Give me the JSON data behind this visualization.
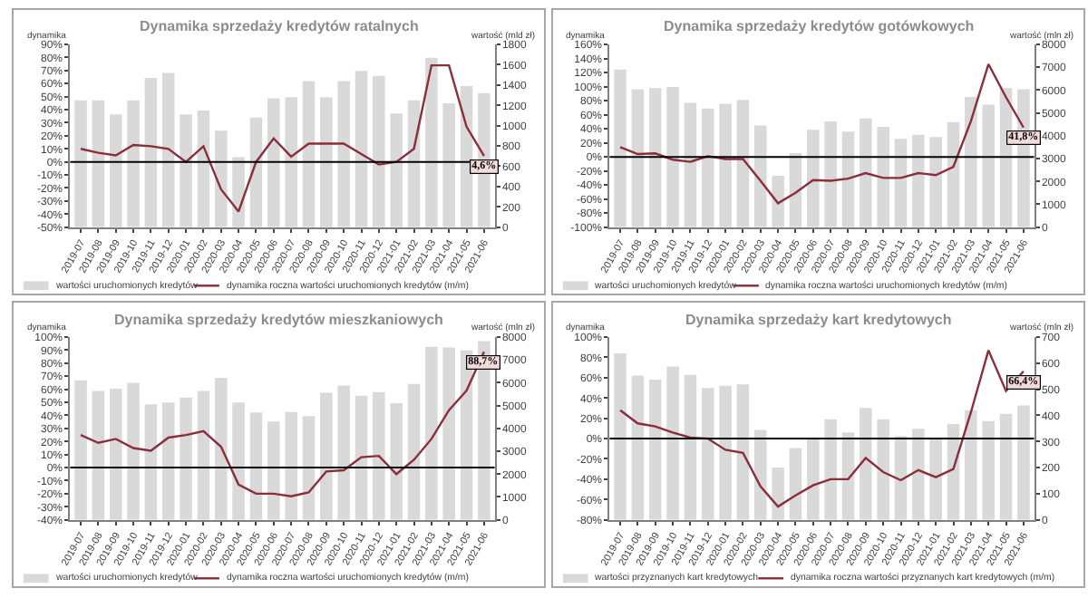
{
  "chart_data": [
    {
      "type": "bar",
      "title": "Dynamika sprzedaży kredytów ratalnych",
      "ylabel": "dynamika",
      "y2label": "wartość (mld zł)",
      "categories": [
        "2019-07",
        "2019-08",
        "2019-09",
        "2019-10",
        "2019-11",
        "2019-12",
        "2020-01",
        "2020-02",
        "2020-03",
        "2020-04",
        "2020-05",
        "2020-06",
        "2020-07",
        "2020-08",
        "2020-09",
        "2020-10",
        "2020-11",
        "2020-12",
        "2021-01",
        "2021-02",
        "2021-03",
        "2021-04",
        "2021-05",
        "2021-06"
      ],
      "series": [
        {
          "name": "wartości uruchomionych kredytów",
          "axis": "y2",
          "color": "#d9d9d9",
          "values": [
            1250,
            1250,
            1110,
            1250,
            1470,
            1520,
            1110,
            1150,
            950,
            690,
            1080,
            1270,
            1280,
            1440,
            1280,
            1440,
            1540,
            1490,
            1120,
            1250,
            1670,
            1220,
            1390,
            1320
          ]
        },
        {
          "name": "dynamika roczna wartości uruchomionych kredytów (m/m)",
          "type": "line",
          "color": "#8b2d3a",
          "values": [
            10,
            7,
            5,
            13,
            12,
            10,
            0,
            12,
            -21,
            -38,
            0,
            18,
            4,
            14,
            14,
            14,
            6,
            -2,
            0,
            10,
            74,
            74,
            27,
            4.6
          ],
          "value_labels": [
            null,
            null,
            null,
            null,
            null,
            null,
            null,
            null,
            null,
            null,
            null,
            null,
            null,
            null,
            null,
            null,
            null,
            null,
            null,
            null,
            null,
            null,
            null,
            "4,6%"
          ]
        }
      ],
      "ylim": [
        -50,
        90
      ],
      "yticks": [
        {
          "value": -50,
          "label": "-50%"
        },
        {
          "value": -40,
          "label": "-40%"
        },
        {
          "value": -30,
          "label": "-30%"
        },
        {
          "value": -20,
          "label": "-20%"
        },
        {
          "value": -10,
          "label": "-10%"
        },
        {
          "value": 0,
          "label": "0%"
        },
        {
          "value": 10,
          "label": "10%"
        },
        {
          "value": 20,
          "label": "20%"
        },
        {
          "value": 30,
          "label": "30%"
        },
        {
          "value": 40,
          "label": "40%"
        },
        {
          "value": 50,
          "label": "50%"
        },
        {
          "value": 60,
          "label": "60%"
        },
        {
          "value": 70,
          "label": "70%"
        },
        {
          "value": 80,
          "label": "80%"
        },
        {
          "value": 90,
          "label": "90%"
        }
      ],
      "y2lim": [
        0,
        1800
      ],
      "y2ticks": [
        0,
        200,
        400,
        600,
        800,
        1000,
        1200,
        1400,
        1600,
        1800
      ],
      "ref_lines": [
        {
          "axis": "y",
          "value": 0,
          "color": "#000000"
        }
      ],
      "grid": false,
      "legend": "bottom",
      "marker": "none",
      "line_style": "solid"
    },
    {
      "type": "bar",
      "title": "Dynamika sprzedaży kredytów gotówkowych",
      "ylabel": "dynamika",
      "y2label": "wartość (mln zł)",
      "categories": [
        "2019-07",
        "2019-08",
        "2019-09",
        "2019-10",
        "2019-11",
        "2019-12",
        "2020-01",
        "2020-02",
        "2020-03",
        "2020-04",
        "2020-05",
        "2020-06",
        "2020-07",
        "2020-08",
        "2020-09",
        "2020-10",
        "2020-11",
        "2020-12",
        "2021-01",
        "2021-02",
        "2021-03",
        "2021-04",
        "2021-05",
        "2021-06"
      ],
      "series": [
        {
          "name": "wartości uruchomionych kredytów",
          "axis": "y2",
          "color": "#d9d9d9",
          "values": [
            6900,
            6040,
            6090,
            6140,
            5440,
            5200,
            5400,
            5570,
            4450,
            2250,
            3240,
            4260,
            4630,
            4180,
            4760,
            4390,
            3870,
            4050,
            3950,
            4600,
            5700,
            5360,
            6090,
            6040
          ]
        },
        {
          "name": "dynamika roczna wartości uruchomionych kredytów (m/m)",
          "type": "line",
          "color": "#8b2d3a",
          "values": [
            14,
            4,
            5,
            -4,
            -7,
            1,
            -3,
            -3,
            -34,
            -66,
            -51,
            -33,
            -34,
            -31,
            -23,
            -30,
            -30,
            -23,
            -26,
            -14,
            51,
            132,
            85,
            41.8
          ],
          "value_labels": [
            null,
            null,
            null,
            null,
            null,
            null,
            null,
            null,
            null,
            null,
            null,
            null,
            null,
            null,
            null,
            null,
            null,
            null,
            null,
            null,
            null,
            null,
            null,
            "41,8%"
          ]
        }
      ],
      "ylim": [
        -100,
        160
      ],
      "yticks": [
        {
          "value": -100,
          "label": "-100%"
        },
        {
          "value": -80,
          "label": "-80%"
        },
        {
          "value": -60,
          "label": "-60%"
        },
        {
          "value": -40,
          "label": "-40%"
        },
        {
          "value": -20,
          "label": "-20%"
        },
        {
          "value": 0,
          "label": "0%"
        },
        {
          "value": 20,
          "label": "20%"
        },
        {
          "value": 40,
          "label": "40%"
        },
        {
          "value": 60,
          "label": "60%"
        },
        {
          "value": 80,
          "label": "80%"
        },
        {
          "value": 100,
          "label": "100%"
        },
        {
          "value": 120,
          "label": "120%"
        },
        {
          "value": 140,
          "label": "140%"
        },
        {
          "value": 160,
          "label": "160%"
        }
      ],
      "y2lim": [
        0,
        8000
      ],
      "y2ticks": [
        0,
        1000,
        2000,
        3000,
        4000,
        5000,
        6000,
        7000,
        8000
      ],
      "ref_lines": [
        {
          "axis": "y",
          "value": 0,
          "color": "#000000"
        }
      ],
      "grid": false,
      "legend": "bottom",
      "marker": "none",
      "line_style": "solid"
    },
    {
      "type": "bar",
      "title": "Dynamika sprzedaży kredytów mieszkaniowych",
      "ylabel": "dynamika",
      "y2label": "wartość (mln zł)",
      "categories": [
        "2019-07",
        "2019-08",
        "2019-09",
        "2019-10",
        "2019-11",
        "2019-12",
        "2020-01",
        "2020-02",
        "2020-03",
        "2020-04",
        "2020-05",
        "2020-06",
        "2020-07",
        "2020-08",
        "2020-09",
        "2020-10",
        "2020-11",
        "2020-12",
        "2021-01",
        "2021-02",
        "2021-03",
        "2021-04",
        "2021-05",
        "2021-06"
      ],
      "series": [
        {
          "name": "wartości uruchomionych kredytów",
          "axis": "y2",
          "color": "#d9d9d9",
          "values": [
            6110,
            5640,
            5740,
            6000,
            5060,
            5140,
            5350,
            5640,
            6220,
            5140,
            4700,
            4300,
            4720,
            4540,
            5560,
            5880,
            5430,
            5590,
            5110,
            5950,
            7580,
            7550,
            7420,
            7820
          ]
        },
        {
          "name": "dynamika roczna wartości uruchomionych kredytów (m/m)",
          "type": "line",
          "color": "#8b2d3a",
          "values": [
            25,
            19,
            22,
            15,
            13,
            23,
            25,
            28,
            16,
            -13,
            -20,
            -20,
            -22,
            -19,
            -3,
            -2,
            8,
            9,
            -5,
            6,
            22,
            44,
            59,
            88.7
          ],
          "value_labels": [
            null,
            null,
            null,
            null,
            null,
            null,
            null,
            null,
            null,
            null,
            null,
            null,
            null,
            null,
            null,
            null,
            null,
            null,
            null,
            null,
            null,
            null,
            null,
            "88,7%"
          ]
        }
      ],
      "ylim": [
        -40,
        100
      ],
      "yticks": [
        {
          "value": -40,
          "label": "-40%"
        },
        {
          "value": -30,
          "label": "-30%"
        },
        {
          "value": -20,
          "label": "-20%"
        },
        {
          "value": -10,
          "label": "-10%"
        },
        {
          "value": 0,
          "label": "0%"
        },
        {
          "value": 10,
          "label": "10%"
        },
        {
          "value": 20,
          "label": "20%"
        },
        {
          "value": 30,
          "label": "30%"
        },
        {
          "value": 40,
          "label": "40%"
        },
        {
          "value": 50,
          "label": "50%"
        },
        {
          "value": 60,
          "label": "60%"
        },
        {
          "value": 70,
          "label": "70%"
        },
        {
          "value": 80,
          "label": "80%"
        },
        {
          "value": 90,
          "label": "90%"
        },
        {
          "value": 100,
          "label": "100%"
        }
      ],
      "y2lim": [
        0,
        8000
      ],
      "y2ticks": [
        0,
        1000,
        2000,
        3000,
        4000,
        5000,
        6000,
        7000,
        8000
      ],
      "ref_lines": [
        {
          "axis": "y",
          "value": 0,
          "color": "#000000"
        }
      ],
      "grid": false,
      "legend": "bottom",
      "marker": "none",
      "line_style": "solid"
    },
    {
      "type": "bar",
      "title": "Dynamika sprzedaży kart kredytowych",
      "ylabel": "dynamika",
      "y2label": "wartość (mln zł)",
      "categories": [
        "2019-07",
        "2019-08",
        "2019-09",
        "2019-10",
        "2019-11",
        "2019-12",
        "2020-01",
        "2020-02",
        "2020-03",
        "2020-04",
        "2020-05",
        "2020-06",
        "2020-07",
        "2020-08",
        "2020-09",
        "2020-10",
        "2020-11",
        "2020-12",
        "2021-01",
        "2021-02",
        "2021-03",
        "2021-04",
        "2021-05",
        "2021-06"
      ],
      "series": [
        {
          "name": "wartości przyznanych kart kredytowych",
          "axis": "y2",
          "color": "#d9d9d9",
          "values": [
            638,
            553,
            537,
            587,
            555,
            505,
            514,
            519,
            344,
            200,
            275,
            314,
            385,
            335,
            429,
            385,
            321,
            349,
            314,
            367,
            420,
            378,
            406,
            438
          ]
        },
        {
          "name": "dynamika roczna wartości przyznanych kart kredytowych (m/m)",
          "type": "line",
          "color": "#8b2d3a",
          "values": [
            28,
            15,
            12,
            6,
            1,
            0,
            -11,
            -14,
            -47,
            -67,
            -56,
            -46,
            -40,
            -40,
            -19,
            -33,
            -41,
            -31,
            -38,
            -30,
            26,
            87,
            47,
            66.4
          ],
          "value_labels": [
            null,
            null,
            null,
            null,
            null,
            null,
            null,
            null,
            null,
            null,
            null,
            null,
            null,
            null,
            null,
            null,
            null,
            null,
            null,
            null,
            null,
            null,
            null,
            "66,4%"
          ]
        }
      ],
      "ylim": [
        -80,
        100
      ],
      "yticks": [
        {
          "value": -80,
          "label": "-80%"
        },
        {
          "value": -60,
          "label": "-60%"
        },
        {
          "value": -40,
          "label": "-40%"
        },
        {
          "value": -20,
          "label": "-20%"
        },
        {
          "value": 0,
          "label": "0%"
        },
        {
          "value": 20,
          "label": "20%"
        },
        {
          "value": 40,
          "label": "40%"
        },
        {
          "value": 60,
          "label": "60%"
        },
        {
          "value": 80,
          "label": "80%"
        },
        {
          "value": 100,
          "label": "100%"
        }
      ],
      "y2lim": [
        0,
        700
      ],
      "y2ticks": [
        0,
        100,
        200,
        300,
        400,
        500,
        600,
        700
      ],
      "ref_lines": [
        {
          "axis": "y",
          "value": 0,
          "color": "#000000"
        }
      ],
      "grid": false,
      "legend": "bottom",
      "marker": "none",
      "line_style": "solid"
    }
  ]
}
